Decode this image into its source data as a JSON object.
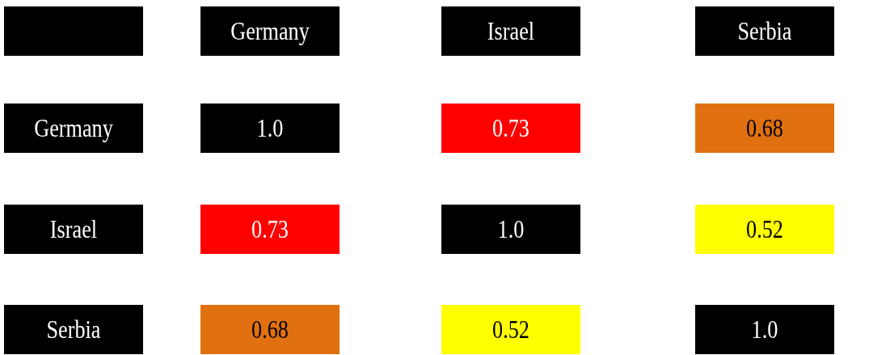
{
  "chart_data": {
    "type": "heatmap",
    "categories": [
      "Germany",
      "Israel",
      "Serbia"
    ],
    "y_categories": [
      "Germany",
      "Israel",
      "Serbia"
    ],
    "cells": [
      [
        1.0,
        0.73,
        0.68
      ],
      [
        0.73,
        1.0,
        0.52
      ],
      [
        0.68,
        0.52,
        1.0
      ]
    ],
    "data_labels": true,
    "cell_labels": [
      [
        "1.0",
        "0.73",
        "0.68"
      ],
      [
        "0.73",
        "1.0",
        "0.52"
      ],
      [
        "0.68",
        "0.52",
        "1.0"
      ]
    ],
    "colors": [
      [
        "#000000",
        "#ff0000",
        "#e07010"
      ],
      [
        "#ff0000",
        "#000000",
        "#ffff00"
      ],
      [
        "#e07010",
        "#ffff00",
        "#000000"
      ]
    ]
  }
}
